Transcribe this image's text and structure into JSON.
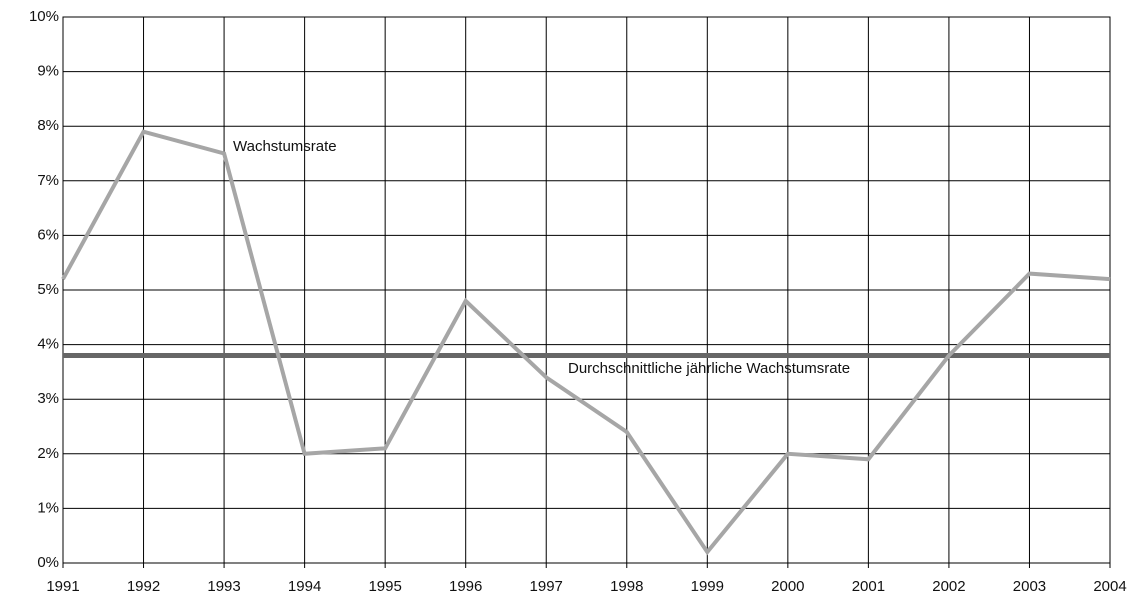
{
  "chart_data": {
    "type": "line",
    "x": [
      1991,
      1992,
      1993,
      1994,
      1995,
      1996,
      1997,
      1998,
      1999,
      2000,
      2001,
      2002,
      2003,
      2004
    ],
    "series": [
      {
        "name": "Wachstumsrate",
        "color": "#a6a6a6",
        "values": [
          5.2,
          7.9,
          7.5,
          2.0,
          2.1,
          4.8,
          3.4,
          2.4,
          0.2,
          2.0,
          1.9,
          3.8,
          5.3,
          5.2
        ]
      },
      {
        "name": "Durchschnittliche jährliche Wachstumsrate",
        "color": "#666666",
        "values": [
          3.8,
          3.8,
          3.8,
          3.8,
          3.8,
          3.8,
          3.8,
          3.8,
          3.8,
          3.8,
          3.8,
          3.8,
          3.8,
          3.8
        ]
      }
    ],
    "xlim": [
      1991,
      2004
    ],
    "xticks": [
      1991,
      1992,
      1993,
      1994,
      1995,
      1996,
      1997,
      1998,
      1999,
      2000,
      2001,
      2002,
      2003,
      2004
    ],
    "ylim": [
      0,
      10
    ],
    "yticks": [
      {
        "value": 0,
        "label": "0%"
      },
      {
        "value": 1,
        "label": "1%"
      },
      {
        "value": 2,
        "label": "2%"
      },
      {
        "value": 3,
        "label": "3%"
      },
      {
        "value": 4,
        "label": "4%"
      },
      {
        "value": 5,
        "label": "5%"
      },
      {
        "value": 6,
        "label": "6%"
      },
      {
        "value": 7,
        "label": "7%"
      },
      {
        "value": 8,
        "label": "8%"
      },
      {
        "value": 9,
        "label": "9%"
      },
      {
        "value": 10,
        "label": "10%"
      }
    ],
    "grid": true
  }
}
